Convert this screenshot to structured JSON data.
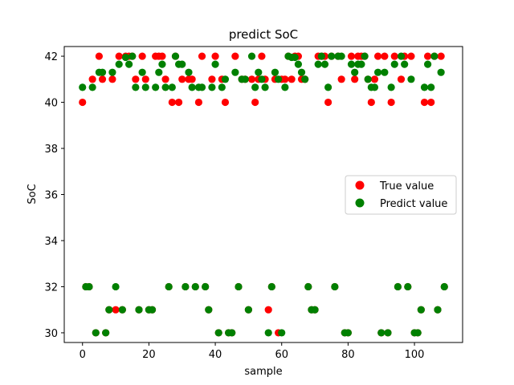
{
  "chart_data": {
    "type": "scatter",
    "title": "predict SoC",
    "xlabel": "sample",
    "ylabel": "SoC",
    "xlim": [
      -5.5,
      114.5
    ],
    "ylim": [
      29.58,
      42.42
    ],
    "xticks": [
      0,
      20,
      40,
      60,
      80,
      100
    ],
    "yticks": [
      30,
      32,
      34,
      36,
      38,
      40,
      42
    ],
    "legend_position": "center-right",
    "grid": false,
    "series": [
      {
        "name": "True value",
        "color": "#ff0000",
        "x": [
          0,
          1,
          2,
          3,
          4,
          5,
          6,
          7,
          8,
          9,
          10,
          11,
          12,
          13,
          14,
          15,
          16,
          17,
          18,
          19,
          20,
          21,
          22,
          23,
          24,
          25,
          26,
          27,
          28,
          29,
          30,
          31,
          32,
          33,
          34,
          35,
          36,
          37,
          38,
          39,
          40,
          41,
          42,
          43,
          44,
          45,
          46,
          47,
          48,
          49,
          50,
          51,
          52,
          53,
          54,
          55,
          56,
          57,
          58,
          59,
          60,
          61,
          62,
          63,
          64,
          65,
          66,
          67,
          68,
          69,
          70,
          71,
          72,
          73,
          74,
          75,
          76,
          77,
          78,
          79,
          80,
          81,
          82,
          83,
          84,
          85,
          86,
          87,
          88,
          89,
          90,
          91,
          92,
          93,
          94,
          95,
          96,
          97,
          98,
          99,
          100,
          101,
          102,
          103,
          104,
          105,
          106,
          107,
          108,
          109
        ],
        "values": [
          40,
          32,
          32,
          41,
          30,
          42,
          41,
          30,
          31,
          41,
          31,
          42,
          31,
          42,
          42,
          42,
          41,
          31,
          42,
          41,
          31,
          31,
          42,
          42,
          42,
          41,
          32,
          40,
          42,
          40,
          41,
          32,
          41,
          41,
          32,
          40,
          42,
          32,
          31,
          41,
          42,
          30,
          41,
          40,
          30,
          30,
          42,
          32,
          41,
          41,
          31,
          41,
          40,
          41,
          42,
          41,
          31,
          32,
          41,
          30,
          41,
          41,
          42,
          41,
          42,
          42,
          41,
          41,
          32,
          31,
          31,
          42,
          42,
          42,
          40,
          42,
          32,
          42,
          41,
          30,
          30,
          42,
          41,
          42,
          42,
          42,
          41,
          40,
          41,
          42,
          30,
          42,
          30,
          40,
          42,
          32,
          41,
          42,
          32,
          42,
          30,
          30,
          31,
          40,
          42,
          40,
          42,
          31,
          42,
          32
        ]
      },
      {
        "name": "Predict value",
        "color": "#008000",
        "x": [
          0,
          1,
          2,
          3,
          4,
          5,
          6,
          7,
          8,
          9,
          10,
          11,
          12,
          13,
          14,
          15,
          16,
          17,
          18,
          19,
          20,
          21,
          22,
          23,
          24,
          25,
          26,
          27,
          28,
          29,
          30,
          31,
          32,
          33,
          34,
          35,
          36,
          37,
          38,
          39,
          40,
          41,
          42,
          43,
          44,
          45,
          46,
          47,
          48,
          49,
          50,
          51,
          52,
          53,
          54,
          55,
          56,
          57,
          58,
          59,
          60,
          61,
          62,
          63,
          64,
          65,
          66,
          67,
          68,
          69,
          70,
          71,
          72,
          73,
          74,
          75,
          76,
          77,
          78,
          79,
          80,
          81,
          82,
          83,
          84,
          85,
          86,
          87,
          88,
          89,
          90,
          91,
          92,
          93,
          94,
          95,
          96,
          97,
          98,
          99,
          100,
          101,
          102,
          103,
          104,
          105,
          106,
          107,
          108,
          109
        ],
        "values": [
          40.65,
          32,
          32,
          40.65,
          30,
          41.3,
          41.3,
          30,
          31,
          41.3,
          32,
          41.65,
          31,
          41.95,
          41.65,
          42,
          40.65,
          31,
          41.3,
          40.65,
          31,
          31,
          40.65,
          41.3,
          41.65,
          40.65,
          32,
          40.65,
          42,
          41.65,
          41.65,
          32,
          41.3,
          40.65,
          32,
          40.65,
          40.65,
          32,
          31,
          40.65,
          41.65,
          30,
          40.65,
          41,
          30,
          30,
          41.3,
          32,
          41,
          41,
          31,
          42,
          40.65,
          41.3,
          41,
          40.65,
          30,
          32,
          41.3,
          41,
          30,
          40.65,
          42,
          41.95,
          41.95,
          41.65,
          41.3,
          41,
          32,
          31,
          31,
          41.65,
          42,
          41.65,
          40.65,
          42,
          32,
          42,
          42,
          30,
          30,
          41.65,
          41.3,
          41.65,
          41.65,
          42,
          41,
          40.65,
          40.65,
          41.3,
          30,
          41.3,
          30,
          40.65,
          41.65,
          32,
          42,
          41.65,
          32,
          41,
          30,
          30,
          31,
          40.65,
          41.65,
          40.65,
          42,
          31,
          41.3,
          32
        ]
      }
    ]
  }
}
